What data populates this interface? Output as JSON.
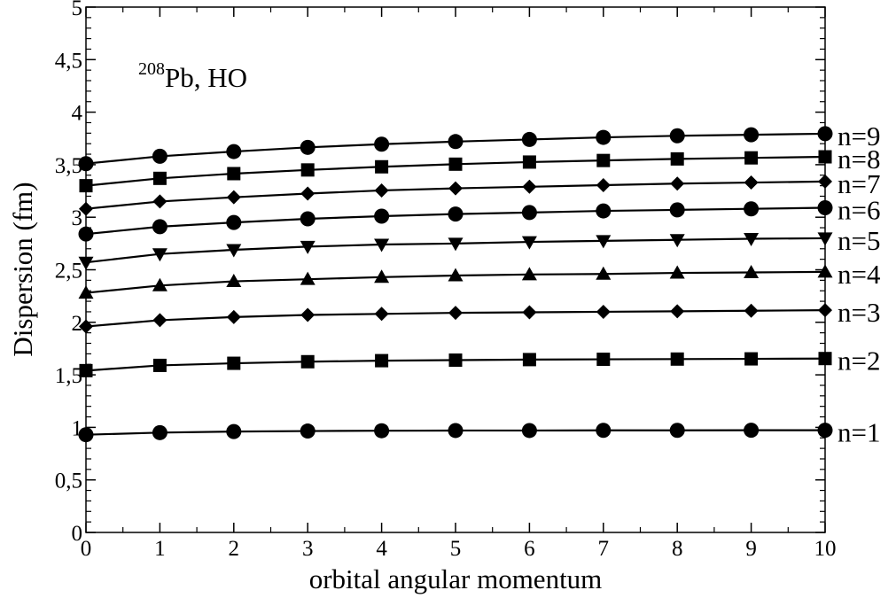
{
  "chart_data": {
    "type": "line",
    "title": "",
    "xlabel": "orbital angular momentum",
    "ylabel": "Dispersion (fm)",
    "xlim": [
      0,
      10
    ],
    "ylim": [
      0,
      5
    ],
    "x": [
      0,
      1,
      2,
      3,
      4,
      5,
      6,
      7,
      8,
      9,
      10
    ],
    "x_ticks": [
      "0",
      "1",
      "2",
      "3",
      "4",
      "5",
      "6",
      "7",
      "8",
      "9",
      "10"
    ],
    "y_ticks": [
      {
        "value": 0,
        "label": "0"
      },
      {
        "value": 0.5,
        "label": "0,5"
      },
      {
        "value": 1,
        "label": "1"
      },
      {
        "value": 1.5,
        "label": "1,5"
      },
      {
        "value": 2,
        "label": "2"
      },
      {
        "value": 2.5,
        "label": "2,5"
      },
      {
        "value": 3,
        "label": "3"
      },
      {
        "value": 3.5,
        "label": "3,5"
      },
      {
        "value": 4,
        "label": "4"
      },
      {
        "value": 4.5,
        "label": "4,5"
      },
      {
        "value": 5,
        "label": "5"
      }
    ],
    "grid": false,
    "line_color": "#000000",
    "annotation": {
      "sup": "208",
      "text": "Pb, HO"
    },
    "series": [
      {
        "name": "n=1",
        "marker": "circle",
        "values": [
          0.93,
          0.95,
          0.96,
          0.965,
          0.968,
          0.97,
          0.97,
          0.972,
          0.972,
          0.973,
          0.973
        ]
      },
      {
        "name": "n=2",
        "marker": "square",
        "values": [
          1.54,
          1.59,
          1.61,
          1.625,
          1.635,
          1.64,
          1.645,
          1.648,
          1.65,
          1.652,
          1.655
        ]
      },
      {
        "name": "n=3",
        "marker": "diamond",
        "values": [
          1.96,
          2.02,
          2.05,
          2.07,
          2.08,
          2.09,
          2.095,
          2.1,
          2.105,
          2.11,
          2.115
        ]
      },
      {
        "name": "n=4",
        "marker": "triangle-up",
        "values": [
          2.28,
          2.35,
          2.39,
          2.41,
          2.43,
          2.445,
          2.455,
          2.46,
          2.47,
          2.475,
          2.48
        ]
      },
      {
        "name": "n=5",
        "marker": "triangle-down",
        "values": [
          2.57,
          2.65,
          2.69,
          2.72,
          2.74,
          2.75,
          2.765,
          2.775,
          2.785,
          2.795,
          2.8
        ]
      },
      {
        "name": "n=6",
        "marker": "circle",
        "values": [
          2.84,
          2.91,
          2.95,
          2.985,
          3.01,
          3.03,
          3.045,
          3.06,
          3.07,
          3.08,
          3.09
        ]
      },
      {
        "name": "n=7",
        "marker": "diamond",
        "values": [
          3.08,
          3.15,
          3.19,
          3.225,
          3.255,
          3.275,
          3.29,
          3.305,
          3.32,
          3.33,
          3.34
        ]
      },
      {
        "name": "n=8",
        "marker": "square",
        "values": [
          3.3,
          3.37,
          3.415,
          3.45,
          3.48,
          3.505,
          3.525,
          3.54,
          3.555,
          3.565,
          3.575
        ]
      },
      {
        "name": "n=9",
        "marker": "circle",
        "values": [
          3.51,
          3.58,
          3.625,
          3.665,
          3.695,
          3.72,
          3.74,
          3.76,
          3.775,
          3.785,
          3.795
        ]
      }
    ]
  }
}
